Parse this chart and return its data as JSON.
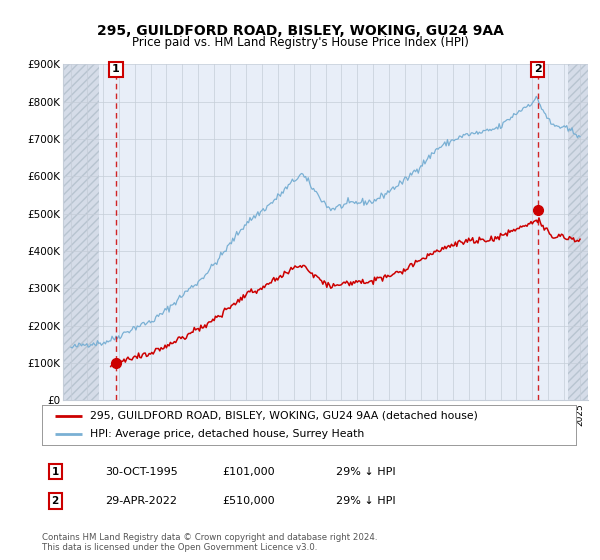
{
  "title": "295, GUILDFORD ROAD, BISLEY, WOKING, GU24 9AA",
  "subtitle": "Price paid vs. HM Land Registry's House Price Index (HPI)",
  "transaction1_date": 1995.83,
  "transaction1_price": 101000,
  "transaction1_label": "1",
  "transaction2_date": 2022.33,
  "transaction2_price": 510000,
  "transaction2_label": "2",
  "ylim": [
    0,
    900000
  ],
  "xlim_left": 1992.5,
  "xlim_right": 2025.5,
  "hatch_left_end": 1994.75,
  "hatch_right_start": 2024.25,
  "legend1_label": "295, GUILDFORD ROAD, BISLEY, WOKING, GU24 9AA (detached house)",
  "legend2_label": "HPI: Average price, detached house, Surrey Heath",
  "footer1": "Contains HM Land Registry data © Crown copyright and database right 2024.",
  "footer2": "This data is licensed under the Open Government Licence v3.0.",
  "note1_date": "30-OCT-1995",
  "note1_price": "£101,000",
  "note1_hpi": "29% ↓ HPI",
  "note2_date": "29-APR-2022",
  "note2_price": "£510,000",
  "note2_hpi": "29% ↓ HPI",
  "red_color": "#cc0000",
  "blue_color": "#7ab0d4",
  "background_color": "#e8eef8",
  "hatch_color": "#d5dce8",
  "grid_color": "#c5cdd8"
}
